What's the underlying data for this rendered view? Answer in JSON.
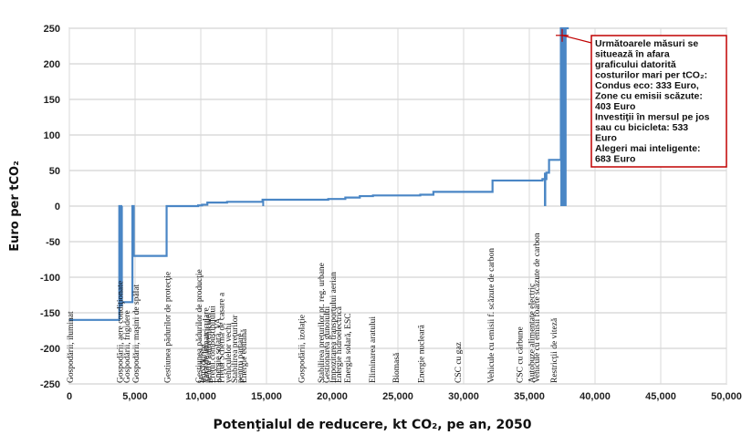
{
  "chart_data": {
    "type": "step",
    "ylabel": "Euro per tCO₂",
    "xlabel": "Potenţialul de reducere, kt CO₂, pe an, 2050",
    "xlim": [
      0,
      50000
    ],
    "ylim": [
      -250,
      250
    ],
    "xticks": [
      "0",
      "5,000",
      "10,000",
      "15,000",
      "20,000",
      "25,000",
      "30,000",
      "35,000",
      "40,000",
      "45,000",
      "50,000"
    ],
    "yticks": [
      "250",
      "200",
      "150",
      "100",
      "50",
      "0",
      "-50",
      "-100",
      "-150",
      "-200",
      "-250"
    ],
    "xtick_values": [
      0,
      5000,
      10000,
      15000,
      20000,
      25000,
      30000,
      35000,
      40000,
      45000,
      50000
    ],
    "ytick_values": [
      250,
      200,
      150,
      100,
      50,
      0,
      -50,
      -100,
      -150,
      -200,
      -250
    ],
    "series_color": "#4a86c5",
    "steps": [
      [
        0,
        -160
      ],
      [
        3800,
        0
      ],
      [
        3950,
        -140
      ],
      [
        4000,
        -135
      ],
      [
        4800,
        0
      ],
      [
        4900,
        -70
      ],
      [
        7400,
        0
      ],
      [
        9800,
        1
      ],
      [
        10100,
        2
      ],
      [
        10500,
        5
      ],
      [
        12000,
        6
      ],
      [
        14700,
        9
      ],
      [
        19700,
        10
      ],
      [
        20000,
        10
      ],
      [
        21000,
        12
      ],
      [
        22100,
        14
      ],
      [
        23100,
        15
      ],
      [
        24800,
        15
      ],
      [
        26700,
        16
      ],
      [
        27700,
        20
      ],
      [
        32200,
        36
      ],
      [
        36000,
        38
      ],
      [
        36300,
        47
      ],
      [
        36500,
        65
      ],
      [
        37400,
        250
      ],
      [
        38000,
        250
      ]
    ],
    "spikes": [
      {
        "x": 3850,
        "y": -140
      },
      {
        "x": 4000,
        "y": -135
      },
      {
        "x": 4850,
        "y": -70
      },
      {
        "x": 14750,
        "y": 9
      },
      {
        "x": 19800,
        "y": 0
      },
      {
        "x": 21100,
        "y": 0
      },
      {
        "x": 22150,
        "y": 0
      },
      {
        "x": 23150,
        "y": 0
      },
      {
        "x": 24900,
        "y": 0
      },
      {
        "x": 26750,
        "y": 0
      },
      {
        "x": 27750,
        "y": 0
      },
      {
        "x": 32250,
        "y": 0
      },
      {
        "x": 36100,
        "y": 0
      },
      {
        "x": 36400,
        "y": 0
      },
      {
        "x": 36550,
        "y": 0
      },
      {
        "x": 37400,
        "y": 0
      },
      {
        "x": 37700,
        "y": 0
      }
    ],
    "measures": [
      {
        "x": 0,
        "label": "Gospodării, iluminat"
      },
      {
        "x": 3800,
        "label": "Gospodării, aere condiţionate"
      },
      {
        "x": 4300,
        "label": "Gospodării, frigidere"
      },
      {
        "x": 5000,
        "label": "Gospodării, maşini de spălat"
      },
      {
        "x": 7400,
        "label": "Gestiunea pădurilor de protecţie"
      },
      {
        "x": 9800,
        "label": "Gestiunea pădurilor de producţie"
      },
      {
        "x": 10100,
        "label": "Împădurire"
      },
      {
        "x": 10300,
        "label": "Taxa de înmatriculare"
      },
      {
        "x": 10500,
        "label": "pentru autovehicule"
      },
      {
        "x": 10800,
        "label": "Preţul combustibilului"
      },
      {
        "x": 11200,
        "label": "Energie solară, VA"
      },
      {
        "x": 11500,
        "label": "Preţul Schema de casare a"
      },
      {
        "x": 12000,
        "label": "vehiculelor vechi"
      },
      {
        "x": 12500,
        "label": "Stabilirea preţurilor"
      },
      {
        "x": 12900,
        "label": "pentru parcare"
      },
      {
        "x": 13200,
        "label": "Energie eoliană"
      },
      {
        "x": 17600,
        "label": "Gospodării, izolaţie"
      },
      {
        "x": 19100,
        "label": "Stabilirea preţurilor pt. reg. urbane"
      },
      {
        "x": 19500,
        "label": "Gestionarea gunoiului"
      },
      {
        "x": 20000,
        "label": "Impozitarea transportului aerian"
      },
      {
        "x": 20400,
        "label": "Energie hidroelectrică"
      },
      {
        "x": 21100,
        "label": "Energia solară, ESC"
      },
      {
        "x": 23000,
        "label": "Eliminarea aratului"
      },
      {
        "x": 24800,
        "label": "Biomasă"
      },
      {
        "x": 26700,
        "label": "Energie nucleară"
      },
      {
        "x": 29500,
        "label": "CSC cu gaz"
      },
      {
        "x": 32000,
        "label": "Vehicule cu emisii f. scăzute de carbon"
      },
      {
        "x": 34200,
        "label": "CSC cu cărbune"
      },
      {
        "x": 35100,
        "label": "Autobuze alimentate electric"
      },
      {
        "x": 35500,
        "label": "Vehicule cu emisii foarte scăzute de carbon"
      },
      {
        "x": 36800,
        "label": "Restricţii de viteză"
      }
    ],
    "annotation": {
      "lines": [
        "Următoarele măsuri se",
        "situează în afara",
        "graficului datorită",
        "costurilor mari per tCO₂:",
        "Condus eco: 333 Euro,",
        "Zone cu emisii scăzute:",
        "403 Euro",
        "Investiţii în mersul pe jos",
        "sau cu bicicleta: 533",
        "Euro",
        "Alegeri mai inteligente:",
        "683 Euro"
      ],
      "border_color": "#c00000",
      "marker_x": 37500,
      "marker_y": 240
    }
  }
}
